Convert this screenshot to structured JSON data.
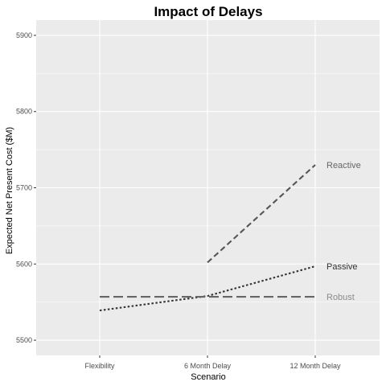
{
  "chart_data": {
    "type": "line",
    "title": "Impact of Delays",
    "xlabel": "Scenario",
    "ylabel": "Expected Net Present Cost ($M)",
    "categories": [
      "Flexibility",
      "6 Month Delay",
      "12 Month Delay"
    ],
    "ylim": [
      5480,
      5920
    ],
    "yticks": [
      "5500",
      "5600",
      "5700",
      "5800",
      "5900"
    ],
    "grid": true,
    "legend": "none",
    "background_color": "#ebebeb",
    "gridline_color": "#ffffff",
    "series": [
      {
        "name": "Reactive",
        "linestyle": "dashed",
        "color": "#555555",
        "label_color": "#666666",
        "points": [
          {
            "category": "6 Month Delay",
            "value": 5602
          },
          {
            "category": "12 Month Delay",
            "value": 5730
          }
        ]
      },
      {
        "name": "Passive",
        "linestyle": "dotted",
        "color": "#333333",
        "label_color": "#333333",
        "points": [
          {
            "category": "Flexibility",
            "value": 5539
          },
          {
            "category": "6 Month Delay",
            "value": 5558
          },
          {
            "category": "12 Month Delay",
            "value": 5597
          }
        ]
      },
      {
        "name": "Robust",
        "linestyle": "longdash",
        "color": "#666666",
        "label_color": "#8c8c8c",
        "points": [
          {
            "category": "Flexibility",
            "value": 5557
          },
          {
            "category": "6 Month Delay",
            "value": 5557
          },
          {
            "category": "12 Month Delay",
            "value": 5557
          }
        ]
      }
    ]
  }
}
